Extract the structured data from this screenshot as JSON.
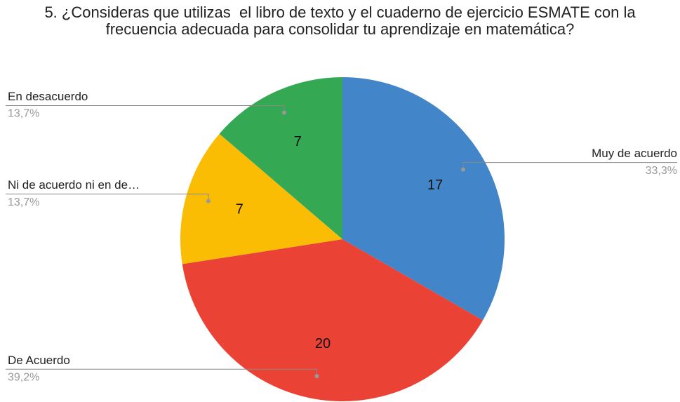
{
  "chart_data": {
    "type": "pie",
    "title": "5. ¿Consideras que utilizas  el libro de texto y el cuaderno de ejercicio ESMATE con la frecuencia adecuada para consolidar tu aprendizaje en matemática?",
    "categories": [
      "Muy de acuerdo",
      "De Acuerdo",
      "Ni de acuerdo ni en de…",
      "En desacuerdo"
    ],
    "values": [
      17,
      20,
      7,
      7
    ],
    "percent_labels": [
      "33,3%",
      "39,2%",
      "13,7%",
      "13,7%"
    ],
    "colors": [
      "#4285c8",
      "#ea4335",
      "#fbbc04",
      "#34a853"
    ]
  }
}
